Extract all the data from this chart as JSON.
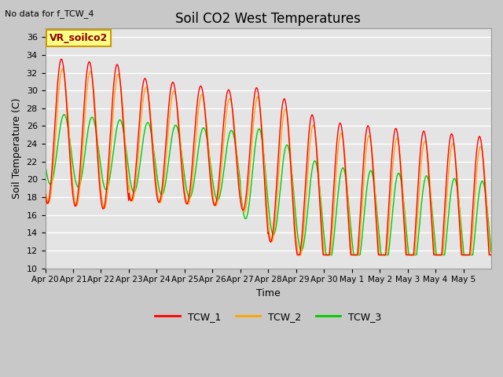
{
  "title": "Soil CO2 West Temperatures",
  "xlabel": "Time",
  "ylabel": "Soil Temperature (C)",
  "no_data_text": "No data for f_TCW_4",
  "vr_label": "VR_soilco2",
  "ylim": [
    10,
    37
  ],
  "yticks": [
    10,
    12,
    14,
    16,
    18,
    20,
    22,
    24,
    26,
    28,
    30,
    32,
    34,
    36
  ],
  "line_colors": {
    "TCW_1": "#ff0000",
    "TCW_2": "#ffa500",
    "TCW_3": "#00cc00"
  },
  "xtick_labels": [
    "Apr 20",
    "Apr 21",
    "Apr 22",
    "Apr 23",
    "Apr 24",
    "Apr 25",
    "Apr 26",
    "Apr 27",
    "Apr 28",
    "Apr 29",
    "Apr 30",
    "May 1",
    "May 2",
    "May 3",
    "May 4",
    "May 5"
  ],
  "n_days": 16
}
